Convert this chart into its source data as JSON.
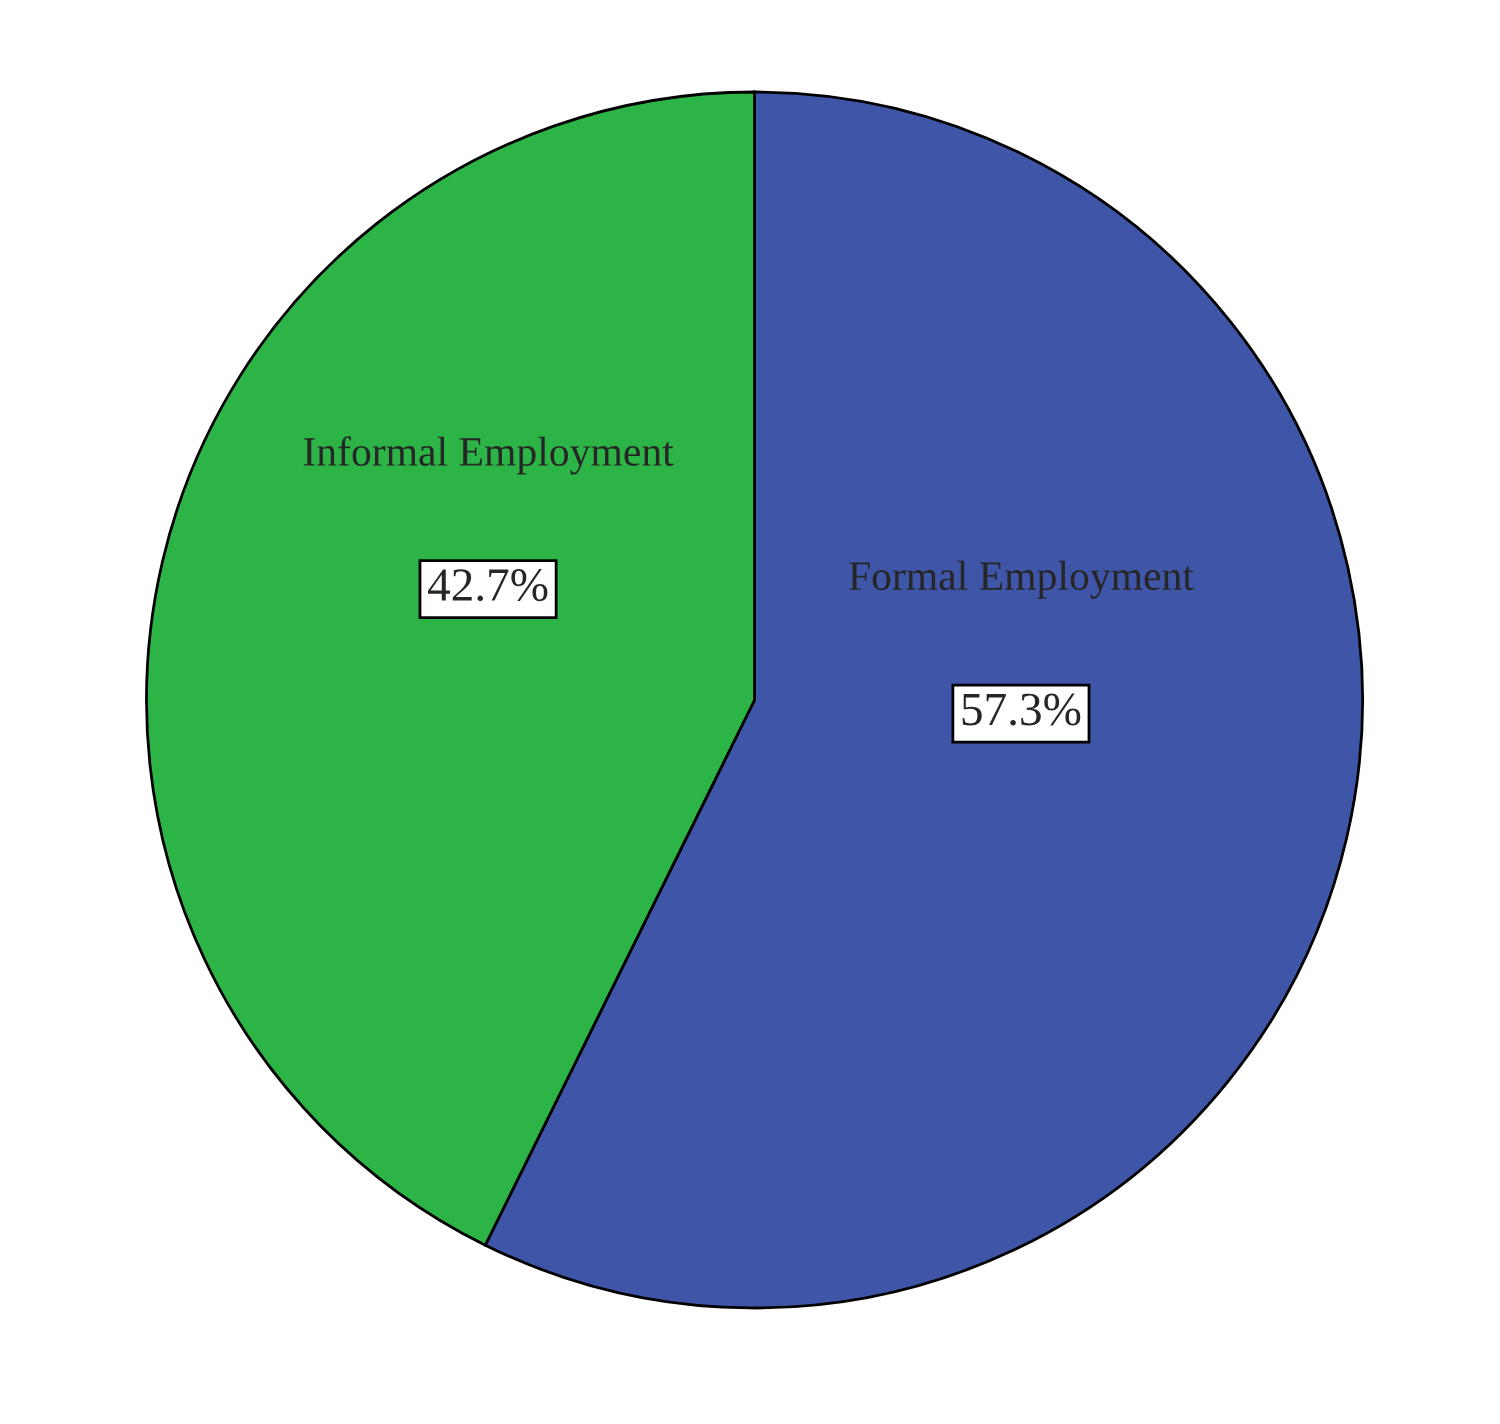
{
  "chart_data": {
    "type": "pie",
    "categories": [
      "Formal Employment",
      "Informal Employment"
    ],
    "values": [
      57.3,
      42.7
    ],
    "colors": [
      "#3f55a8",
      "#2db446"
    ],
    "value_labels": [
      "57.3%",
      "42.7%"
    ]
  }
}
